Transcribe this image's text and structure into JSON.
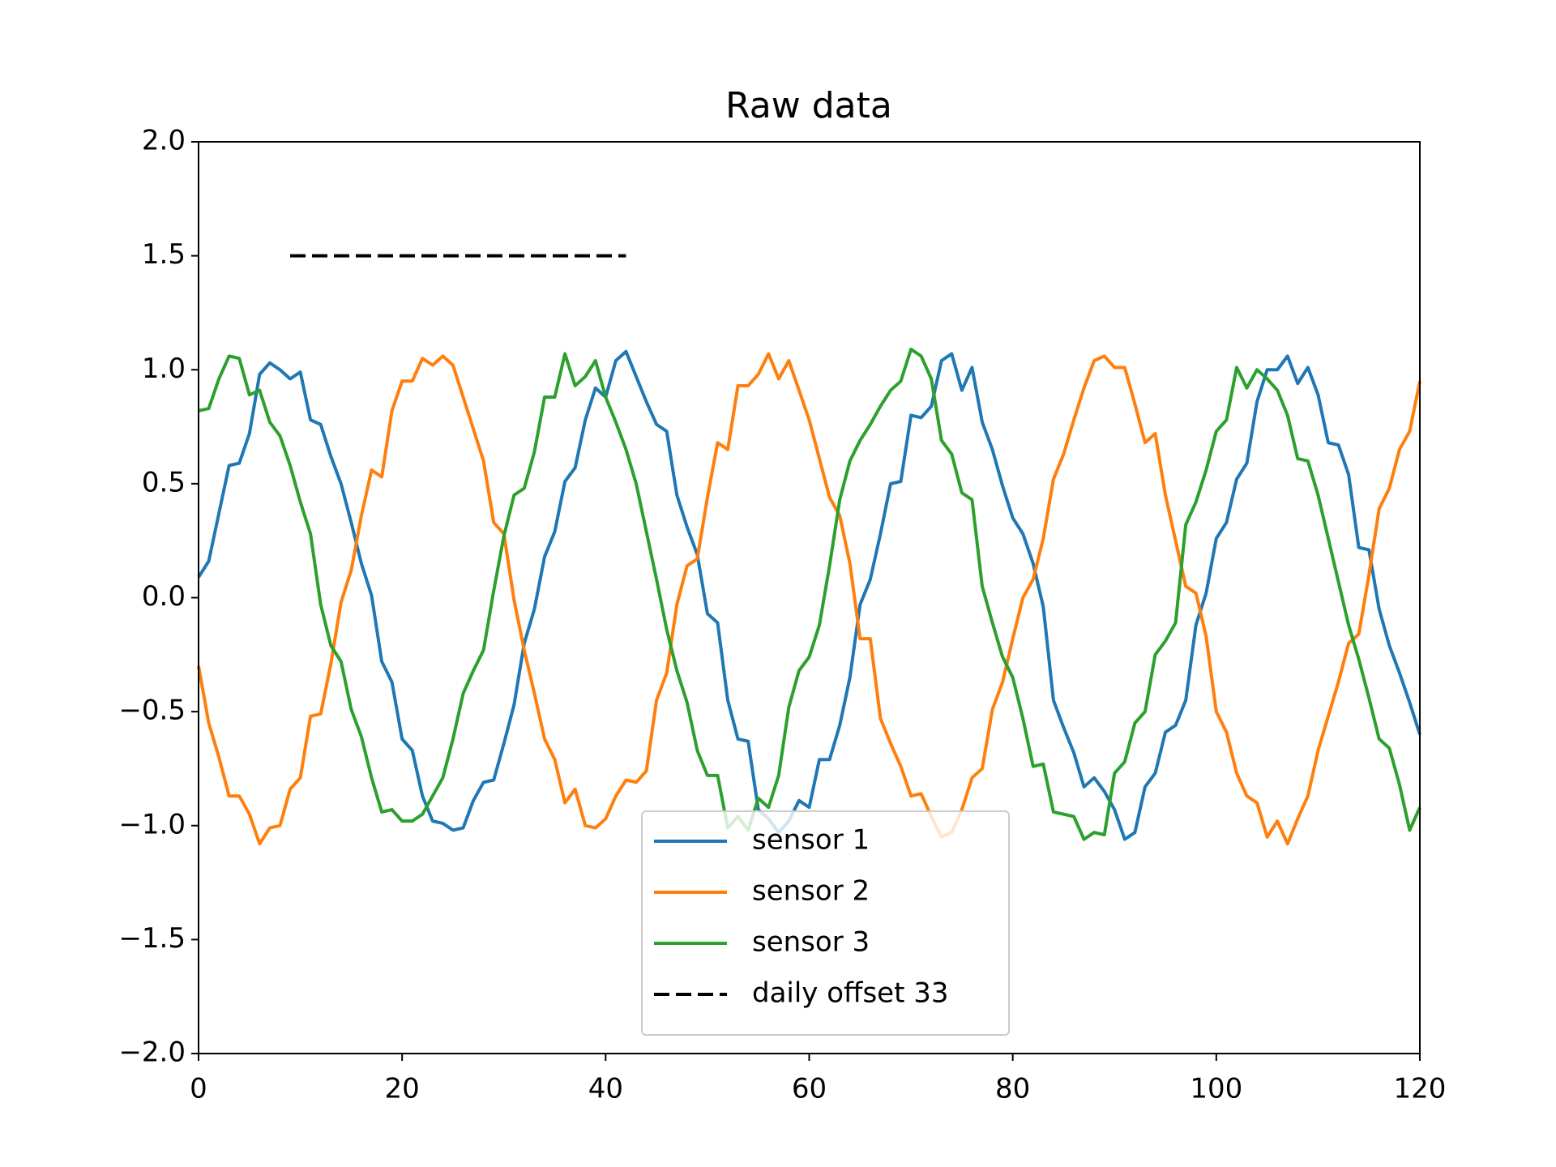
{
  "chart_data": {
    "type": "line",
    "title": "Raw data",
    "x": [
      0,
      1,
      2,
      3,
      4,
      5,
      6,
      7,
      8,
      9,
      10,
      11,
      12,
      13,
      14,
      15,
      16,
      17,
      18,
      19,
      20,
      21,
      22,
      23,
      24,
      25,
      26,
      27,
      28,
      29,
      30,
      31,
      32,
      33,
      34,
      35,
      36,
      37,
      38,
      39,
      40,
      41,
      42,
      43,
      44,
      45,
      46,
      47,
      48,
      49,
      50,
      51,
      52,
      53,
      54,
      55,
      56,
      57,
      58,
      59,
      60,
      61,
      62,
      63,
      64,
      65,
      66,
      67,
      68,
      69,
      70,
      71,
      72,
      73,
      74,
      75,
      76,
      77,
      78,
      79,
      80,
      81,
      82,
      83,
      84,
      85,
      86,
      87,
      88,
      89,
      90,
      91,
      92,
      93,
      94,
      95,
      96,
      97,
      98,
      99,
      100,
      101,
      102,
      103,
      104,
      105,
      106,
      107,
      108,
      109,
      110,
      111,
      112,
      113,
      114,
      115,
      116,
      117,
      118,
      119,
      120
    ],
    "series": [
      {
        "name": "sensor 1",
        "color": "#1f77b4",
        "values": [
          0.09,
          0.16,
          0.37,
          0.58,
          0.59,
          0.72,
          0.98,
          1.03,
          1.0,
          0.96,
          0.99,
          0.78,
          0.76,
          0.62,
          0.5,
          0.33,
          0.15,
          0.01,
          -0.28,
          -0.37,
          -0.62,
          -0.67,
          -0.87,
          -0.98,
          -0.99,
          -1.02,
          -1.01,
          -0.89,
          -0.81,
          -0.8,
          -0.64,
          -0.47,
          -0.2,
          -0.05,
          0.18,
          0.29,
          0.51,
          0.57,
          0.78,
          0.92,
          0.88,
          1.04,
          1.08,
          0.97,
          0.86,
          0.76,
          0.73,
          0.45,
          0.31,
          0.19,
          -0.07,
          -0.11,
          -0.45,
          -0.62,
          -0.63,
          -0.93,
          -0.97,
          -1.03,
          -0.98,
          -0.89,
          -0.92,
          -0.71,
          -0.71,
          -0.56,
          -0.35,
          -0.03,
          0.08,
          0.28,
          0.5,
          0.51,
          0.8,
          0.79,
          0.84,
          1.04,
          1.07,
          0.91,
          1.01,
          0.77,
          0.65,
          0.49,
          0.35,
          0.28,
          0.15,
          -0.04,
          -0.45,
          -0.57,
          -0.68,
          -0.83,
          -0.79,
          -0.85,
          -0.93,
          -1.06,
          -1.03,
          -0.83,
          -0.77,
          -0.59,
          -0.56,
          -0.45,
          -0.12,
          0.02,
          0.26,
          0.33,
          0.52,
          0.59,
          0.86,
          1.0,
          1.0,
          1.06,
          0.94,
          1.01,
          0.89,
          0.68,
          0.67,
          0.54,
          0.22,
          0.21,
          -0.05,
          -0.21,
          -0.33,
          -0.46,
          -0.6
        ]
      },
      {
        "name": "sensor 2",
        "color": "#ff7f0e",
        "values": [
          -0.3,
          -0.55,
          -0.7,
          -0.87,
          -0.87,
          -0.95,
          -1.08,
          -1.01,
          -1.0,
          -0.84,
          -0.79,
          -0.52,
          -0.51,
          -0.29,
          -0.02,
          0.12,
          0.36,
          0.56,
          0.53,
          0.82,
          0.95,
          0.95,
          1.05,
          1.02,
          1.06,
          1.02,
          0.88,
          0.74,
          0.6,
          0.33,
          0.28,
          -0.01,
          -0.23,
          -0.42,
          -0.62,
          -0.71,
          -0.9,
          -0.84,
          -1.0,
          -1.01,
          -0.97,
          -0.87,
          -0.8,
          -0.81,
          -0.76,
          -0.45,
          -0.33,
          -0.03,
          0.14,
          0.17,
          0.44,
          0.68,
          0.65,
          0.93,
          0.93,
          0.98,
          1.07,
          0.96,
          1.04,
          0.91,
          0.78,
          0.61,
          0.44,
          0.36,
          0.15,
          -0.18,
          -0.18,
          -0.53,
          -0.64,
          -0.74,
          -0.87,
          -0.86,
          -0.96,
          -1.05,
          -1.03,
          -0.93,
          -0.79,
          -0.75,
          -0.49,
          -0.37,
          -0.18,
          0.0,
          0.08,
          0.26,
          0.52,
          0.63,
          0.78,
          0.92,
          1.04,
          1.06,
          1.01,
          1.01,
          0.85,
          0.68,
          0.72,
          0.45,
          0.25,
          0.05,
          0.02,
          -0.17,
          -0.5,
          -0.59,
          -0.77,
          -0.87,
          -0.9,
          -1.05,
          -0.98,
          -1.08,
          -0.97,
          -0.87,
          -0.67,
          -0.52,
          -0.37,
          -0.2,
          -0.16,
          0.1,
          0.39,
          0.48,
          0.65,
          0.73,
          0.95
        ]
      },
      {
        "name": "sensor 3",
        "color": "#2ca02c",
        "values": [
          0.82,
          0.83,
          0.96,
          1.06,
          1.05,
          0.89,
          0.91,
          0.77,
          0.71,
          0.58,
          0.42,
          0.28,
          -0.03,
          -0.21,
          -0.28,
          -0.49,
          -0.61,
          -0.79,
          -0.94,
          -0.93,
          -0.98,
          -0.98,
          -0.95,
          -0.87,
          -0.79,
          -0.62,
          -0.42,
          -0.32,
          -0.23,
          0.03,
          0.27,
          0.45,
          0.48,
          0.64,
          0.88,
          0.88,
          1.07,
          0.93,
          0.97,
          1.04,
          0.88,
          0.77,
          0.65,
          0.5,
          0.29,
          0.08,
          -0.14,
          -0.32,
          -0.46,
          -0.67,
          -0.78,
          -0.78,
          -1.01,
          -0.96,
          -1.02,
          -0.88,
          -0.92,
          -0.78,
          -0.48,
          -0.32,
          -0.26,
          -0.12,
          0.14,
          0.43,
          0.6,
          0.69,
          0.76,
          0.84,
          0.91,
          0.95,
          1.09,
          1.06,
          0.96,
          0.69,
          0.63,
          0.46,
          0.43,
          0.05,
          -0.11,
          -0.26,
          -0.35,
          -0.53,
          -0.74,
          -0.73,
          -0.94,
          -0.95,
          -0.96,
          -1.06,
          -1.03,
          -1.04,
          -0.77,
          -0.72,
          -0.55,
          -0.5,
          -0.25,
          -0.19,
          -0.11,
          0.32,
          0.42,
          0.56,
          0.73,
          0.78,
          1.01,
          0.92,
          1.0,
          0.96,
          0.91,
          0.8,
          0.61,
          0.6,
          0.45,
          0.26,
          0.07,
          -0.12,
          -0.27,
          -0.44,
          -0.62,
          -0.66,
          -0.82,
          -1.02,
          -0.92
        ]
      },
      {
        "name": "daily offset 33",
        "color": "#000000",
        "linestyle": "dashed",
        "x": [
          9,
          42
        ],
        "values": [
          1.5,
          1.5
        ]
      }
    ],
    "xlim": [
      0,
      120
    ],
    "xticks": [
      0,
      20,
      40,
      60,
      80,
      100,
      120
    ],
    "ylim": [
      -2,
      2
    ],
    "yticks": [
      {
        "value": -2,
        "label": "−2.0"
      },
      {
        "value": -1.5,
        "label": "−1.5"
      },
      {
        "value": -1,
        "label": "−1.0"
      },
      {
        "value": -0.5,
        "label": "−0.5"
      },
      {
        "value": 0,
        "label": "0.0"
      },
      {
        "value": 0.5,
        "label": "0.5"
      },
      {
        "value": 1,
        "label": "1.0"
      },
      {
        "value": 1.5,
        "label": "1.5"
      },
      {
        "value": 2,
        "label": "2.0"
      }
    ],
    "grid": false,
    "legend": "lower center"
  }
}
